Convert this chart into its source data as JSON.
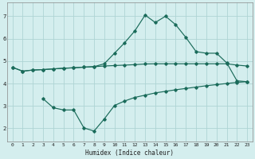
{
  "xlabel": "Humidex (Indice chaleur)",
  "bg_color": "#d4eeee",
  "grid_color": "#aed4d4",
  "line_color": "#1a6b5a",
  "xlim": [
    -0.5,
    23.5
  ],
  "ylim": [
    1.4,
    7.6
  ],
  "yticks": [
    2,
    3,
    4,
    5,
    6,
    7
  ],
  "xticks": [
    0,
    1,
    2,
    3,
    4,
    5,
    6,
    7,
    8,
    9,
    10,
    11,
    12,
    13,
    14,
    15,
    16,
    17,
    18,
    19,
    20,
    21,
    22,
    23
  ],
  "line1_x": [
    0,
    1,
    2,
    3,
    4,
    5,
    6,
    7,
    8,
    9,
    10,
    11,
    12,
    13,
    14,
    15,
    16,
    17,
    18,
    19,
    20,
    21,
    22,
    23
  ],
  "line1_y": [
    4.72,
    4.55,
    4.6,
    4.62,
    4.65,
    4.68,
    4.7,
    4.73,
    4.75,
    4.78,
    4.8,
    4.82,
    4.84,
    4.87,
    4.88,
    4.88,
    4.88,
    4.88,
    4.88,
    4.88,
    4.88,
    4.88,
    4.82,
    4.78
  ],
  "line2_x": [
    0,
    1,
    2,
    3,
    4,
    5,
    6,
    7,
    8,
    9,
    10,
    11,
    12,
    13,
    14,
    15,
    16,
    17,
    18,
    19,
    20,
    21,
    22,
    23
  ],
  "line2_y": [
    4.72,
    4.55,
    4.6,
    4.62,
    4.65,
    4.68,
    4.7,
    4.73,
    4.75,
    4.88,
    5.35,
    5.82,
    6.35,
    7.05,
    6.72,
    7.0,
    6.62,
    6.05,
    5.42,
    5.35,
    5.35,
    4.92,
    4.12,
    4.08
  ],
  "line3_x": [
    3,
    4,
    5,
    6,
    7,
    8,
    9,
    10,
    11,
    12,
    13,
    14,
    15,
    16,
    17,
    18,
    19,
    20,
    21,
    22,
    23
  ],
  "line3_y": [
    3.32,
    2.92,
    2.82,
    2.82,
    2.02,
    1.88,
    2.42,
    3.02,
    3.22,
    3.38,
    3.48,
    3.58,
    3.65,
    3.72,
    3.78,
    3.84,
    3.9,
    3.95,
    4.0,
    4.05,
    4.08
  ]
}
